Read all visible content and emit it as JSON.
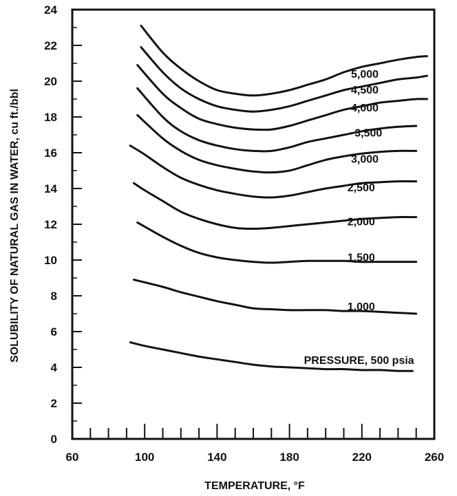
{
  "chart_data": {
    "type": "line",
    "xlabel": "TEMPERATURE, °F",
    "ylabel": "SOLUBILITY OF NATURAL GAS IN WATER, cu ft./bbl",
    "xlim": [
      60,
      260
    ],
    "ylim": [
      0,
      24
    ],
    "xticks": [
      60,
      100,
      140,
      180,
      220,
      260
    ],
    "yticks": [
      0,
      2,
      4,
      6,
      8,
      10,
      12,
      14,
      16,
      18,
      20,
      22,
      24
    ],
    "grid": false,
    "series": [
      {
        "name": "5,000",
        "x": [
          98,
          110,
          120,
          130,
          140,
          150,
          160,
          170,
          180,
          190,
          200,
          210,
          220,
          230,
          240,
          250,
          256
        ],
        "y": [
          23.1,
          21.6,
          20.7,
          20.0,
          19.5,
          19.3,
          19.2,
          19.3,
          19.5,
          19.8,
          20.1,
          20.5,
          20.8,
          21.0,
          21.2,
          21.35,
          21.4
        ]
      },
      {
        "name": "4,500",
        "x": [
          98,
          110,
          120,
          130,
          140,
          150,
          160,
          170,
          180,
          190,
          200,
          210,
          220,
          230,
          240,
          250,
          256
        ],
        "y": [
          21.9,
          20.5,
          19.6,
          19.0,
          18.6,
          18.4,
          18.3,
          18.4,
          18.6,
          18.9,
          19.2,
          19.5,
          19.7,
          19.9,
          20.1,
          20.2,
          20.3
        ]
      },
      {
        "name": "4,000",
        "x": [
          96,
          110,
          120,
          130,
          140,
          150,
          160,
          170,
          180,
          190,
          200,
          210,
          220,
          230,
          240,
          250,
          256
        ],
        "y": [
          20.9,
          19.3,
          18.5,
          17.9,
          17.6,
          17.4,
          17.3,
          17.3,
          17.5,
          17.8,
          18.1,
          18.4,
          18.6,
          18.8,
          18.9,
          19.0,
          19.0
        ]
      },
      {
        "name": "3,500",
        "x": [
          96,
          110,
          120,
          130,
          140,
          150,
          160,
          170,
          180,
          190,
          200,
          210,
          220,
          230,
          240,
          250
        ],
        "y": [
          19.6,
          18.0,
          17.2,
          16.7,
          16.4,
          16.2,
          16.1,
          16.1,
          16.3,
          16.6,
          16.8,
          17.0,
          17.2,
          17.35,
          17.45,
          17.5
        ]
      },
      {
        "name": "3,000",
        "x": [
          96,
          110,
          120,
          130,
          140,
          150,
          160,
          170,
          180,
          190,
          200,
          210,
          220,
          230,
          240,
          250
        ],
        "y": [
          18.1,
          16.8,
          16.1,
          15.6,
          15.3,
          15.1,
          14.95,
          14.9,
          15.0,
          15.3,
          15.6,
          15.8,
          15.95,
          16.05,
          16.1,
          16.1
        ]
      },
      {
        "name": "2,500",
        "x": [
          92,
          100,
          110,
          120,
          130,
          140,
          150,
          160,
          170,
          180,
          190,
          200,
          210,
          220,
          230,
          240,
          250
        ],
        "y": [
          16.4,
          15.9,
          15.2,
          14.6,
          14.2,
          13.9,
          13.7,
          13.55,
          13.5,
          13.6,
          13.8,
          14.0,
          14.15,
          14.3,
          14.35,
          14.4,
          14.4
        ]
      },
      {
        "name": "2,000",
        "x": [
          94,
          100,
          110,
          120,
          130,
          140,
          150,
          160,
          170,
          180,
          190,
          200,
          210,
          220,
          230,
          240,
          250
        ],
        "y": [
          14.3,
          13.9,
          13.3,
          12.7,
          12.3,
          12.0,
          11.8,
          11.75,
          11.8,
          11.9,
          12.0,
          12.1,
          12.2,
          12.3,
          12.35,
          12.4,
          12.4
        ]
      },
      {
        "name": "1,500",
        "x": [
          96,
          110,
          120,
          130,
          140,
          150,
          160,
          170,
          180,
          190,
          200,
          210,
          220,
          230,
          240,
          250
        ],
        "y": [
          12.1,
          11.3,
          10.8,
          10.4,
          10.15,
          10.0,
          9.9,
          9.85,
          9.9,
          9.95,
          9.95,
          9.95,
          9.9,
          9.9,
          9.9,
          9.9
        ]
      },
      {
        "name": "1,000",
        "x": [
          94,
          110,
          120,
          130,
          140,
          150,
          160,
          170,
          180,
          190,
          200,
          210,
          220,
          230,
          240,
          250
        ],
        "y": [
          8.9,
          8.5,
          8.2,
          7.95,
          7.7,
          7.5,
          7.3,
          7.25,
          7.2,
          7.2,
          7.2,
          7.15,
          7.15,
          7.1,
          7.05,
          7.0
        ]
      },
      {
        "name": "PRESSURE, 500 psia",
        "x": [
          92,
          100,
          110,
          120,
          130,
          140,
          150,
          160,
          170,
          180,
          190,
          200,
          210,
          220,
          230,
          240,
          248
        ],
        "y": [
          5.4,
          5.2,
          5.0,
          4.8,
          4.6,
          4.45,
          4.3,
          4.15,
          4.05,
          4.0,
          3.95,
          3.9,
          3.9,
          3.85,
          3.85,
          3.8,
          3.8
        ]
      }
    ],
    "curve_labels": [
      {
        "text": "5,000",
        "x": 214,
        "y": 20.2
      },
      {
        "text": "4,500",
        "x": 214,
        "y": 19.3
      },
      {
        "text": "4,000",
        "x": 214,
        "y": 18.3
      },
      {
        "text": "3,500",
        "x": 216,
        "y": 16.9
      },
      {
        "text": "3,000",
        "x": 214,
        "y": 15.45
      },
      {
        "text": "2,500",
        "x": 212,
        "y": 13.85
      },
      {
        "text": "2,000",
        "x": 212,
        "y": 11.95
      },
      {
        "text": "1,500",
        "x": 212,
        "y": 9.95
      },
      {
        "text": "1,000",
        "x": 212,
        "y": 7.2
      },
      {
        "text": "PRESSURE, 500 psia",
        "x": 188,
        "y": 4.2
      }
    ]
  }
}
